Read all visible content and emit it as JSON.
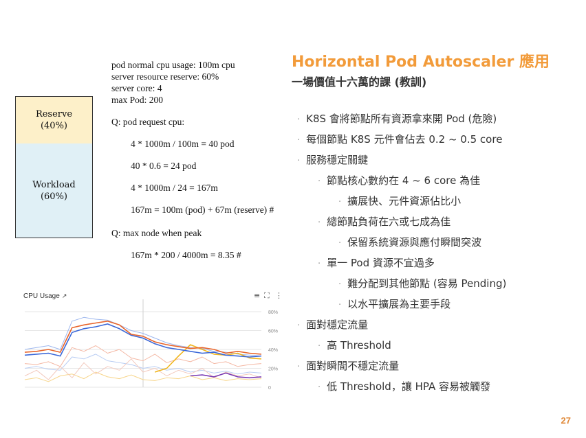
{
  "diagram": {
    "reserve_label": "Reserve\n(40%)",
    "workload_label": "Workload\n(60%)"
  },
  "notes": {
    "facts": [
      "pod normal cpu usage: 100m cpu",
      "server resource reserve: 60%",
      "server core: 4",
      "max Pod: 200"
    ],
    "q1": "Q: pod request cpu:",
    "calc1": "4 * 1000m / 100m = 40 pod",
    "calc2": "40 * 0.6 = 24 pod",
    "calc3": "4 * 1000m / 24 = 167m",
    "calc4": "167m = 100m  (pod) + 67m (reserve) #",
    "q2": "Q: max node when peak",
    "calc5": "167m * 200 / 4000m = 8.35 #"
  },
  "chart_widget": {
    "title": "CPU Usage",
    "external_icon": "external-link-icon",
    "menu_icon": "menu-icon",
    "expand_icon": "expand-icon",
    "more_icon": "more-vert-icon"
  },
  "chart_data": {
    "type": "line",
    "title": "CPU Usage",
    "y_ticks": [
      "80%",
      "60%",
      "40%",
      "20%",
      "0"
    ],
    "ylim": [
      0,
      80
    ],
    "grid": true,
    "x": [
      0,
      1,
      2,
      3,
      4,
      5,
      6,
      7,
      8,
      9,
      10,
      11,
      12,
      13,
      14,
      15,
      16,
      17,
      18,
      19,
      20
    ],
    "series": [
      {
        "color": "#e8642a",
        "values": [
          37,
          38,
          40,
          37,
          63,
          66,
          68,
          70,
          66,
          56,
          54,
          48,
          45,
          43,
          41,
          42,
          40,
          36,
          38,
          36,
          35
        ]
      },
      {
        "color": "#3a67d8",
        "values": [
          34,
          35,
          36,
          33,
          58,
          62,
          64,
          67,
          62,
          55,
          52,
          46,
          42,
          40,
          38,
          36,
          37,
          34,
          33,
          32,
          33
        ]
      },
      {
        "color": "#f0b51b",
        "values": [
          null,
          null,
          null,
          null,
          null,
          null,
          null,
          null,
          null,
          null,
          null,
          16,
          20,
          33,
          45,
          40,
          35,
          34,
          36,
          31,
          30
        ]
      },
      {
        "color": "#7b3db5",
        "values": [
          null,
          null,
          null,
          null,
          null,
          null,
          null,
          null,
          null,
          null,
          null,
          null,
          null,
          null,
          12,
          13,
          11,
          15,
          11,
          10,
          11
        ]
      },
      {
        "color": "#9db7ee",
        "values": [
          40,
          42,
          44,
          40,
          70,
          74,
          72,
          71,
          66,
          60,
          57,
          52,
          47,
          44,
          42,
          41,
          38,
          37,
          35,
          34,
          33
        ]
      },
      {
        "color": "#f4b8a4",
        "values": [
          25,
          24,
          27,
          22,
          42,
          38,
          44,
          36,
          40,
          31,
          28,
          35,
          26,
          30,
          27,
          32,
          25,
          27,
          22,
          24,
          25
        ]
      },
      {
        "color": "#f3c9bd",
        "values": [
          12,
          18,
          8,
          22,
          10,
          26,
          14,
          22,
          18,
          30,
          16,
          20,
          12,
          18,
          14,
          20,
          10,
          16,
          12,
          14,
          10
        ]
      },
      {
        "color": "#b9cdf3",
        "values": [
          20,
          22,
          19,
          18,
          32,
          30,
          35,
          28,
          26,
          24,
          20,
          22,
          18,
          20,
          16,
          18,
          15,
          17,
          14,
          16,
          15
        ]
      },
      {
        "color": "#f7d58a",
        "values": [
          8,
          10,
          6,
          12,
          14,
          9,
          16,
          11,
          9,
          13,
          8,
          7,
          10,
          9,
          12,
          8,
          10,
          7,
          9,
          8,
          9
        ]
      }
    ]
  },
  "slide": {
    "title": "Horizontal Pod Autoscaler 應用",
    "subtitle": "一場價值十六萬的課 (教訓)",
    "bullets": [
      "K8S 會將節點所有資源拿來開 Pod (危險)",
      "每個節點 K8S 元件會佔去 0.2 ~ 0.5 core",
      "服務穩定關鍵",
      "節點核心數約在 4 ~ 6 core 為佳",
      "擴展快、元件資源佔比小",
      "總節點負荷在六或七成為佳",
      "保留系統資源與應付瞬間突波",
      "單一 Pod 資源不宜過多",
      "難分配到其他節點 (容易 Pending)",
      "以水平擴展為主要手段",
      "面對穩定流量",
      "高 Threshold",
      "面對瞬間不穩定流量",
      "低 Threshold，讓 HPA 容易被觸發"
    ],
    "bullet_marker": "·",
    "page_number": "27",
    "title_color": "#f29b3a"
  }
}
